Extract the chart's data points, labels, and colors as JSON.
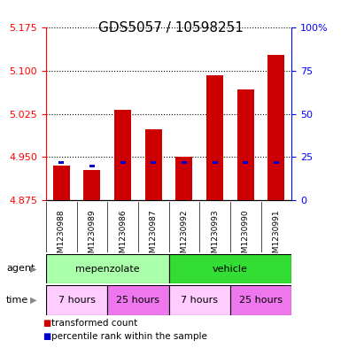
{
  "title": "GDS5057 / 10598251",
  "samples": [
    "GSM1230988",
    "GSM1230989",
    "GSM1230986",
    "GSM1230987",
    "GSM1230992",
    "GSM1230993",
    "GSM1230990",
    "GSM1230991"
  ],
  "bar_bottoms": [
    4.875,
    4.875,
    4.875,
    4.875,
    4.875,
    4.875,
    4.875,
    4.875
  ],
  "bar_tops": [
    4.935,
    4.928,
    5.032,
    4.998,
    4.95,
    5.093,
    5.068,
    5.128
  ],
  "percentile_values": [
    4.94,
    4.934,
    4.94,
    4.94,
    4.94,
    4.94,
    4.94,
    4.94
  ],
  "ylim_left": [
    4.875,
    5.175
  ],
  "ylim_right": [
    0,
    100
  ],
  "yticks_left": [
    4.875,
    4.95,
    5.025,
    5.1,
    5.175
  ],
  "yticks_right": [
    0,
    25,
    50,
    75,
    100
  ],
  "bar_color": "#cc0000",
  "percentile_color": "#0000cc",
  "agent_groups": [
    {
      "label": "mepenzolate",
      "start": 0,
      "end": 4,
      "color": "#aaffaa"
    },
    {
      "label": "vehicle",
      "start": 4,
      "end": 8,
      "color": "#33dd33"
    }
  ],
  "time_groups": [
    {
      "label": "7 hours",
      "start": 0,
      "end": 2,
      "color": "#ffccff"
    },
    {
      "label": "25 hours",
      "start": 2,
      "end": 4,
      "color": "#ee77ee"
    },
    {
      "label": "7 hours",
      "start": 4,
      "end": 6,
      "color": "#ffccff"
    },
    {
      "label": "25 hours",
      "start": 6,
      "end": 8,
      "color": "#ee77ee"
    }
  ],
  "legend_items": [
    {
      "label": "transformed count",
      "color": "#cc0000"
    },
    {
      "label": "percentile rank within the sample",
      "color": "#0000cc"
    }
  ],
  "title_fontsize": 11,
  "tick_fontsize": 8,
  "sample_fontsize": 6.5,
  "label_fontsize": 8,
  "legend_fontsize": 7.5
}
